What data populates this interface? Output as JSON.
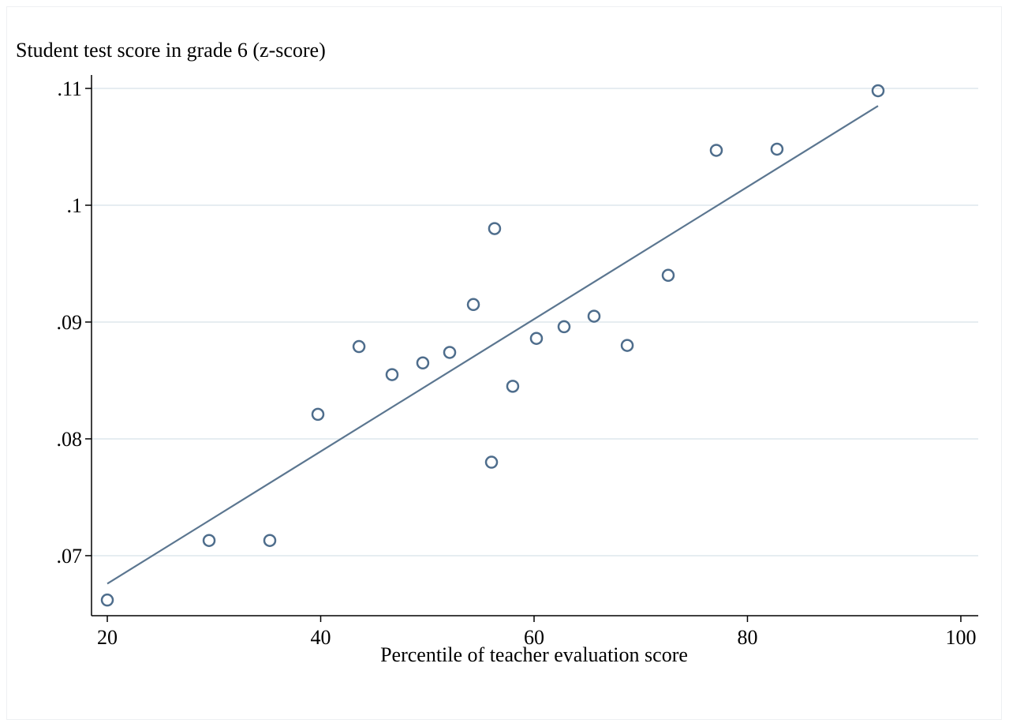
{
  "chart_data": {
    "type": "scatter",
    "y_label": "Student test score in grade 6 (z-score)",
    "x_label": "Percentile of teacher evaluation score",
    "x": [
      20,
      29.54,
      35.23,
      39.74,
      43.59,
      46.69,
      49.57,
      52.09,
      54.31,
      56.01,
      56.3,
      58.0,
      60.22,
      62.81,
      65.62,
      68.73,
      72.57,
      77.08,
      82.77,
      92.24
    ],
    "values": [
      0.0662,
      0.0713,
      0.0713,
      0.0821,
      0.0879,
      0.0855,
      0.0865,
      0.0874,
      0.0915,
      0.078,
      0.098,
      0.0845,
      0.0886,
      0.0896,
      0.0905,
      0.088,
      0.094,
      0.1047,
      0.1048,
      0.1098
    ],
    "color": "#4e6d8c",
    "fit": {
      "x": [
        20,
        92.24
      ],
      "y": [
        0.0676,
        0.1085
      ],
      "color": "#5b7690"
    },
    "xlim": [
      18.52,
      101.63
    ],
    "ylim": [
      0.06486,
      0.11115
    ],
    "xticks": [
      20,
      40,
      60,
      80,
      100
    ],
    "yticks": [
      {
        "value": 0.07,
        "label": ".07"
      },
      {
        "value": 0.08,
        "label": ".08"
      },
      {
        "value": 0.09,
        "label": ".09"
      },
      {
        "value": 0.1,
        "label": ".1"
      },
      {
        "value": 0.11,
        "label": ".11"
      }
    ],
    "grid": true
  }
}
